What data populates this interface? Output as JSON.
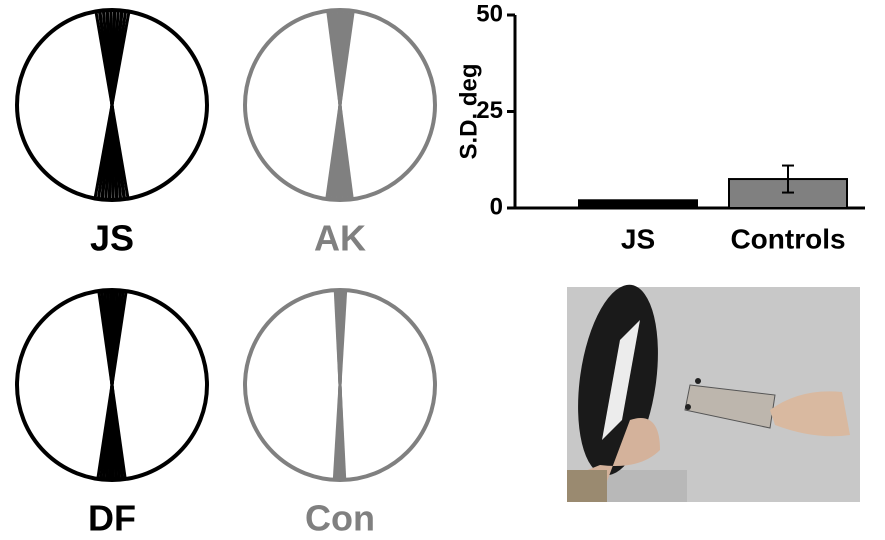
{
  "panels": [
    {
      "label": "JS",
      "color": "#000000"
    },
    {
      "label": "AK",
      "color": "#808080"
    },
    {
      "label": "DF",
      "color": "#000000"
    },
    {
      "label": "Con",
      "color": "#808080"
    }
  ],
  "chart_data": {
    "type": "bar",
    "y_label": "S.D. deg",
    "categories": [
      "JS",
      "Controls"
    ],
    "values": [
      2,
      7.5
    ],
    "errors": [
      null,
      3.5
    ],
    "colors": [
      "#000000",
      "#808080"
    ],
    "ylim": [
      0,
      50
    ],
    "yticks": [
      0,
      25,
      50
    ]
  }
}
